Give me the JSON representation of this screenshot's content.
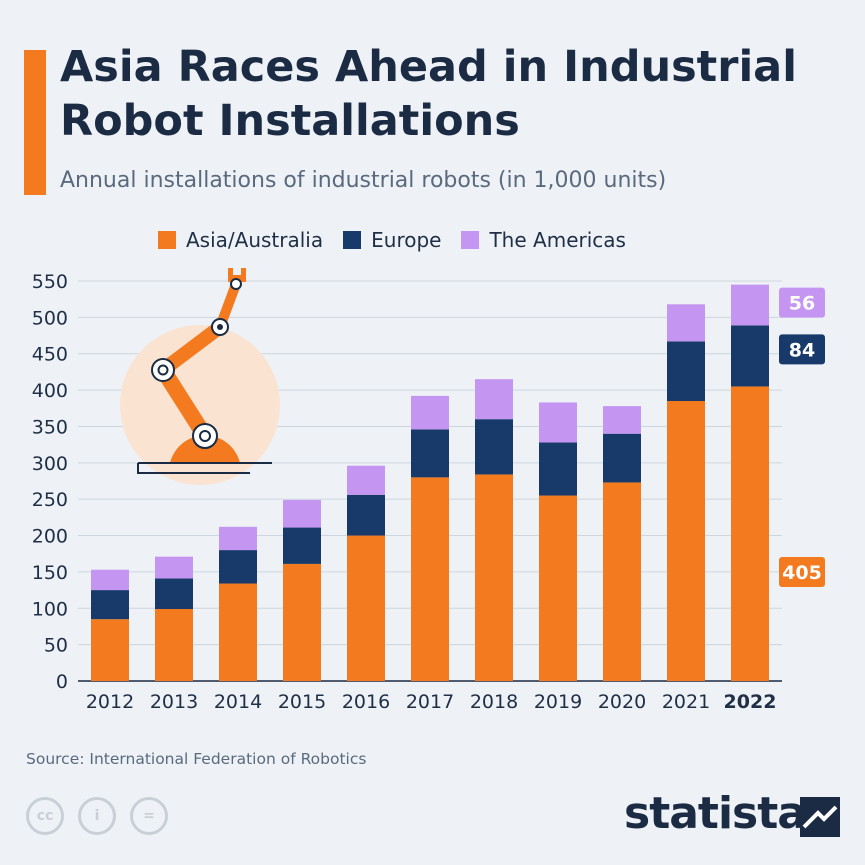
{
  "header": {
    "title": "Asia Races Ahead in Industrial Robot Installations",
    "subtitle": "Annual installations of industrial robots (in 1,000 units)"
  },
  "legend": [
    {
      "label": "Asia/Australia",
      "color": "#f47a1f"
    },
    {
      "label": "Europe",
      "color": "#173a6b"
    },
    {
      "label": "The Americas",
      "color": "#c496f2"
    }
  ],
  "chart_data": {
    "type": "bar",
    "stacked": true,
    "title": "Asia Races Ahead in Industrial Robot Installations",
    "subtitle": "Annual installations of industrial robots (in 1,000 units)",
    "categories": [
      "2012",
      "2013",
      "2014",
      "2015",
      "2016",
      "2017",
      "2018",
      "2019",
      "2020",
      "2021",
      "2022"
    ],
    "series": [
      {
        "name": "Asia/Australia",
        "color": "#f47a1f",
        "values": [
          85,
          99,
          134,
          161,
          200,
          280,
          284,
          255,
          273,
          385,
          405
        ]
      },
      {
        "name": "Europe",
        "color": "#173a6b",
        "values": [
          40,
          42,
          46,
          50,
          56,
          66,
          76,
          73,
          67,
          82,
          84
        ]
      },
      {
        "name": "The Americas",
        "color": "#c496f2",
        "values": [
          28,
          30,
          32,
          38,
          40,
          46,
          55,
          55,
          38,
          51,
          56
        ]
      }
    ],
    "ylim": [
      0,
      550
    ],
    "yticks": [
      0,
      50,
      100,
      150,
      200,
      250,
      300,
      350,
      400,
      450,
      500,
      550
    ],
    "highlight_category": "2022",
    "data_labels": {
      "The Americas": "56",
      "Europe": "84",
      "Asia/Australia": "405"
    },
    "grid": true,
    "legend_position": "top"
  },
  "footer": {
    "source": "Source: International Federation of Robotics",
    "brand": "statista",
    "license_icons": [
      "cc-icon",
      "attribution-icon",
      "no-derivatives-icon"
    ],
    "license_glyphs": [
      "cc",
      "i",
      "="
    ]
  }
}
